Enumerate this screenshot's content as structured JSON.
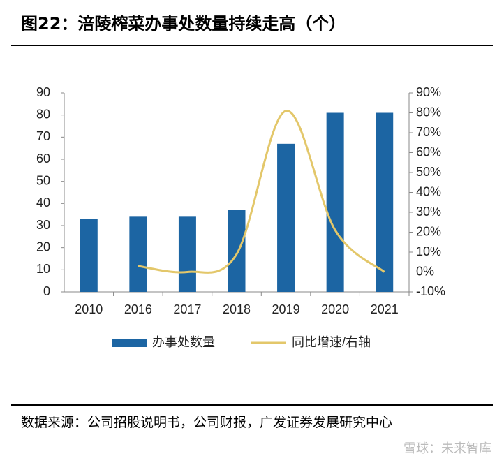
{
  "header": {
    "title": "图22：涪陵榨菜办事处数量持续走高（个）"
  },
  "chart_data": {
    "type": "bar-line",
    "categories": [
      "2010",
      "2016",
      "2017",
      "2018",
      "2019",
      "2020",
      "2021"
    ],
    "series": [
      {
        "name": "办事处数量",
        "type": "bar",
        "color": "#1c65a3",
        "values": [
          33,
          34,
          34,
          37,
          67,
          81,
          81
        ]
      },
      {
        "name": "同比增速/右轴",
        "type": "line",
        "axis": "y2",
        "color": "#e3c76a",
        "smooth": true,
        "values": [
          null,
          3,
          0,
          9,
          81,
          21,
          0
        ]
      }
    ],
    "ylim": [
      0,
      90
    ],
    "yticks": [
      0,
      10,
      20,
      30,
      40,
      50,
      60,
      70,
      80,
      90
    ],
    "y2lim": [
      -10,
      90
    ],
    "y2ticks": [
      {
        "value": -10,
        "label": "-10%"
      },
      {
        "value": 0,
        "label": "0%"
      },
      {
        "value": 10,
        "label": "10%"
      },
      {
        "value": 20,
        "label": "20%"
      },
      {
        "value": 30,
        "label": "30%"
      },
      {
        "value": 40,
        "label": "40%"
      },
      {
        "value": 50,
        "label": "50%"
      },
      {
        "value": 60,
        "label": "60%"
      },
      {
        "value": 70,
        "label": "70%"
      },
      {
        "value": 80,
        "label": "80%"
      },
      {
        "value": 90,
        "label": "90%"
      }
    ]
  },
  "footer": {
    "source": "数据来源：公司招股说明书，公司财报，广发证券发展研究中心",
    "watermark": "雪球：未来智库"
  }
}
